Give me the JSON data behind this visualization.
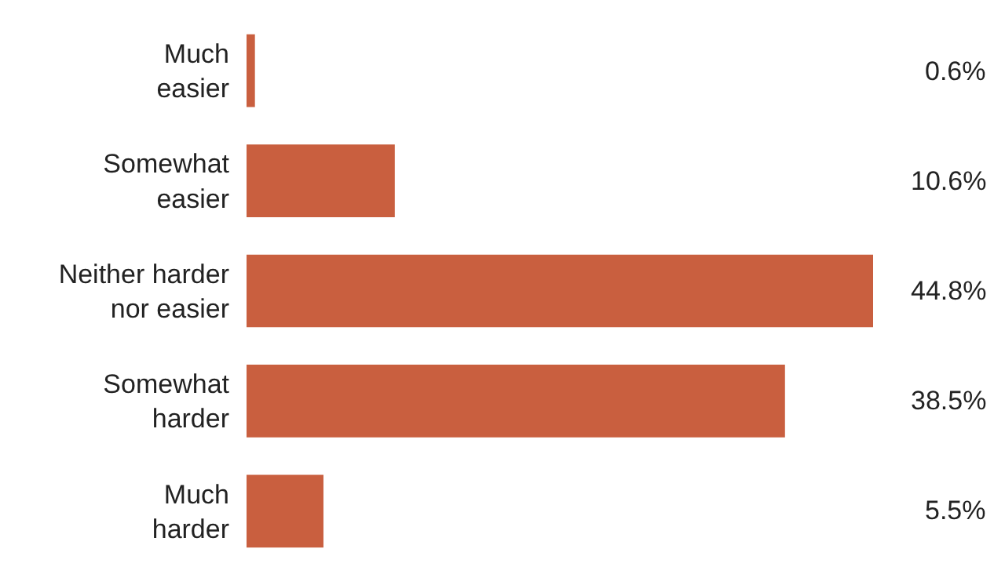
{
  "chart_data": {
    "type": "bar",
    "orientation": "horizontal",
    "categories": [
      "Much easier",
      "Somewhat easier",
      "Neither harder nor easier",
      "Somewhat harder",
      "Much harder"
    ],
    "values": [
      0.6,
      10.6,
      44.8,
      38.5,
      5.5
    ],
    "color": "#c95f3f",
    "value_labels": [
      "0.6%",
      "10.6%",
      "44.8%",
      "38.5%",
      "5.5%"
    ]
  }
}
